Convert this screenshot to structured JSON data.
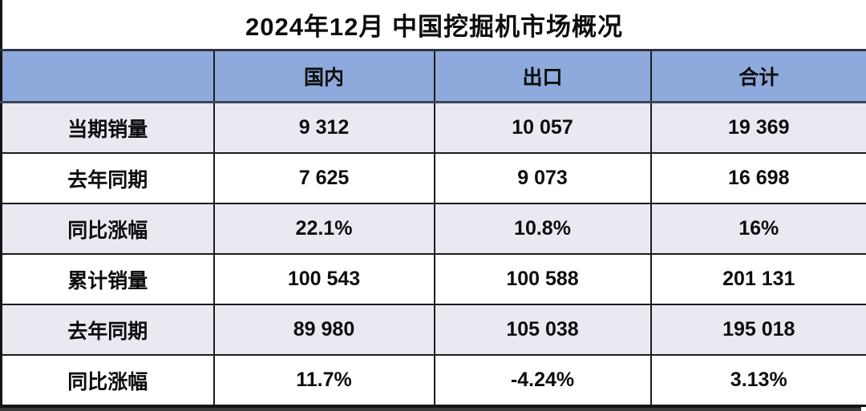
{
  "title": "2024年12月 中国挖掘机市场概况",
  "chart_data": {
    "type": "table",
    "title": "2024年12月 中国挖掘机市场概况",
    "columns": [
      "",
      "国内",
      "出口",
      "合计"
    ],
    "rows": [
      {
        "label": "当期销量",
        "values": [
          "9 312",
          "10 057",
          "19 369"
        ]
      },
      {
        "label": "去年同期",
        "values": [
          "7 625",
          "9 073",
          "16 698"
        ]
      },
      {
        "label": "同比涨幅",
        "values": [
          "22.1%",
          "10.8%",
          "16%"
        ]
      },
      {
        "label": "累计销量",
        "values": [
          "100 543",
          "100 588",
          "201 131"
        ]
      },
      {
        "label": "去年同期",
        "values": [
          "89 980",
          "105 038",
          "195 018"
        ]
      },
      {
        "label": "同比涨幅",
        "values": [
          "11.7%",
          "-4.24%",
          "3.13%"
        ]
      }
    ],
    "layout": {
      "header_bg": "#8EA9DB",
      "alt_row_bg": "#E9E9F2",
      "plain_row_bg": "#FFFFFF",
      "border_color": "#1C1C1C",
      "header_divider_color": "#3C4458",
      "shadow_color": "#3A3A3A",
      "text_color": "#0D0D0D"
    }
  }
}
